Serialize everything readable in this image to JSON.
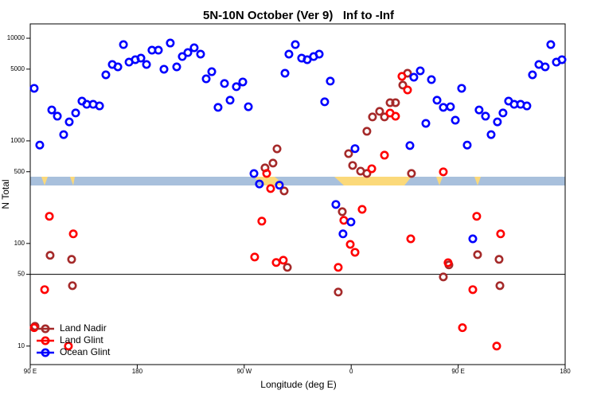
{
  "chart_data": {
    "type": "scatter",
    "title": "5N-10N October (Ver 9)   Inf to -Inf",
    "x_label": "Longitude (deg E)",
    "y_label": "N Total",
    "xlim": [
      90,
      540
    ],
    "xticks": [
      {
        "value": 90,
        "label": "90 E"
      },
      {
        "value": 180,
        "label": "180"
      },
      {
        "value": 270,
        "label": "90 W"
      },
      {
        "value": 360,
        "label": "0"
      },
      {
        "value": 450,
        "label": "90 E"
      },
      {
        "value": 540,
        "label": "180"
      }
    ],
    "ylim": [
      6.6,
      13800
    ],
    "yscale": "log",
    "yticks": [
      10,
      50,
      100,
      500,
      1000,
      5000,
      10000
    ],
    "hline": 50,
    "legend": "bottom-left",
    "series": [
      {
        "name": "Land Nadir",
        "color": "#a52a2a",
        "x": [
          94.0,
          106.7,
          125.5,
          124.8,
          287.5,
          294.2,
          297.6,
          303.6,
          306.3,
          349.1,
          352.5,
          357.8,
          361.2,
          367.9,
          373.2,
          373.2,
          377.9,
          383.9,
          388.0,
          392.7,
          397.3,
          403.4,
          407.4,
          410.7,
          437.5,
          442.2,
          466.3,
          485.1,
          484.4
        ],
        "y": [
          15.6,
          76.6,
          38.8,
          70,
          545,
          607,
          836,
          325,
          58.5,
          33.6,
          204,
          751,
          576,
          507,
          481,
          1239,
          1710,
          1937,
          1710,
          2355,
          2355,
          3495,
          4560,
          481,
          47.2,
          61.8,
          77.8,
          38.8,
          70
        ]
      },
      {
        "name": "Land Glint",
        "color": "#ff0000",
        "x": [
          106.1,
          102.1,
          126.2,
          122.1,
          93.3,
          278.8,
          284.8,
          288.9,
          292.2,
          296.9,
          302.9,
          349.1,
          353.8,
          359.2,
          363.2,
          369.2,
          377.3,
          388.0,
          392.7,
          397.3,
          402.7,
          407.4,
          410.1,
          437.5,
          441.5,
          453.6,
          462.3,
          465.6,
          482.4,
          485.7
        ],
        "y": [
          184,
          35.5,
          124,
          10,
          15.1,
          73.8,
          165,
          481,
          343,
          65.2,
          68.7,
          58.5,
          168,
          98,
          82,
          215,
          535,
          725,
          1866,
          1738,
          4250,
          3135,
          111,
          499,
          65,
          15.1,
          35.5,
          184,
          10,
          124
        ]
      },
      {
        "name": "Ocean Glint",
        "color": "#0000ff",
        "x": [
          93.3,
          98.0,
          108.1,
          112.8,
          118.1,
          122.8,
          128.2,
          133.5,
          137.5,
          142.9,
          148.3,
          153.6,
          159.0,
          163.7,
          168.4,
          173.1,
          178.4,
          183.1,
          187.8,
          192.4,
          197.8,
          202.5,
          207.8,
          213.2,
          217.9,
          222.6,
          227.9,
          233.3,
          238.0,
          242.7,
          248.0,
          253.4,
          258.1,
          263.4,
          268.8,
          273.5,
          278.2,
          282.8,
          299.6,
          304.3,
          307.6,
          313.0,
          318.3,
          323.0,
          328.4,
          333.1,
          337.7,
          342.4,
          347.1,
          353.1,
          359.8,
          363.2,
          409.4,
          412.7,
          418.1,
          422.8,
          427.5,
          432.2,
          437.5,
          443.5,
          447.6,
          452.9,
          457.6,
          462.3,
          467.6,
          473.0,
          477.7,
          483.0,
          487.7,
          492.4,
          497.1,
          502.5,
          507.8,
          512.5,
          517.9,
          523.2,
          527.9,
          532.6,
          537.3
        ],
        "y": [
          3250,
          910,
          2000,
          1740,
          1150,
          1530,
          1870,
          2440,
          2270,
          2270,
          2190,
          4400,
          5550,
          5260,
          8670,
          5850,
          6180,
          6400,
          5550,
          7650,
          7650,
          4990,
          8980,
          5260,
          6630,
          7250,
          8070,
          7000,
          4020,
          4720,
          2120,
          3620,
          2490,
          3370,
          3750,
          2150,
          480,
          380,
          370,
          4560,
          7000,
          8670,
          6400,
          6180,
          6630,
          7000,
          2400,
          3820,
          240,
          124,
          162,
          840,
          900,
          4170,
          4810,
          1480,
          3950,
          2490,
          2120,
          2150,
          1590,
          3250,
          910,
          111,
          2000,
          1740,
          1150,
          1530,
          1870,
          2440,
          2270,
          2270,
          2190,
          4400,
          5550,
          5260,
          8670,
          5850,
          6180
        ]
      }
    ]
  }
}
